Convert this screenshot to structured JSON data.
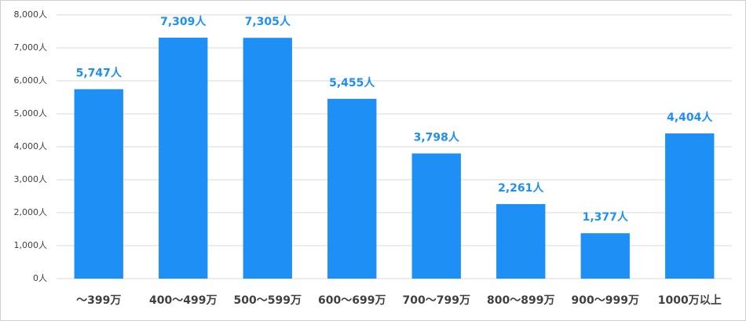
{
  "chart_data": {
    "type": "bar",
    "categories": [
      "～399万",
      "400～499万",
      "500～599万",
      "600～699万",
      "700～799万",
      "800～899万",
      "900～999万",
      "1000万以上"
    ],
    "values": [
      5747,
      7309,
      7305,
      5455,
      3798,
      2261,
      1377,
      4404
    ],
    "value_labels": [
      "5,747人",
      "7,309人",
      "7,305人",
      "5,455人",
      "3,798人",
      "2,261人",
      "1,377人",
      "4,404人"
    ],
    "color": "#1e8ff5",
    "ylim": [
      0,
      8000
    ],
    "yticks": [
      {
        "value": 0,
        "label": "0人"
      },
      {
        "value": 1000,
        "label": "1,000人"
      },
      {
        "value": 2000,
        "label": "2,000人"
      },
      {
        "value": 3000,
        "label": "3,000人"
      },
      {
        "value": 4000,
        "label": "4,000人"
      },
      {
        "value": 5000,
        "label": "5,000人"
      },
      {
        "value": 6000,
        "label": "6,000人"
      },
      {
        "value": 7000,
        "label": "7,000人"
      },
      {
        "value": 8000,
        "label": "8,000人"
      }
    ],
    "grid": true
  }
}
